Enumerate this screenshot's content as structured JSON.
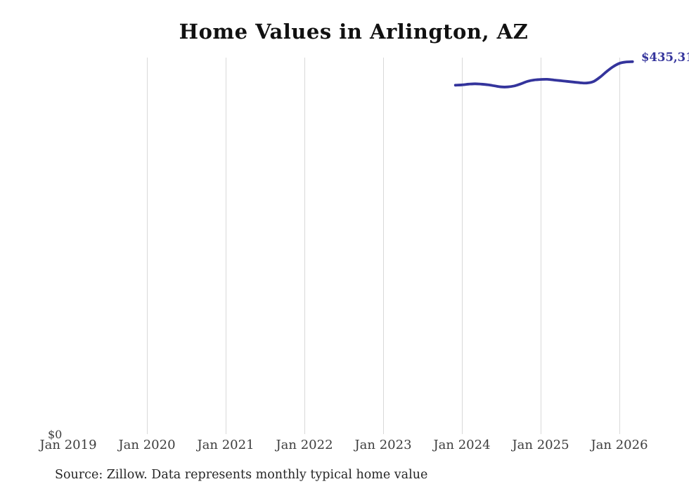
{
  "title": "Home Values in Arlington, AZ",
  "source_note": "Source: Zillow. Data represents monthly typical home value",
  "y_axis": {
    "zero_label": "$0"
  },
  "end_value_label": "$435,31",
  "colors": {
    "line": "#34349c",
    "gridline": "#d9d9d9",
    "title_text": "#111111",
    "tick_text": "#3d3d3d",
    "source_text": "#262626",
    "background": "#ffffff"
  },
  "chart_data": {
    "type": "line",
    "title": "Home Values in Arlington, AZ",
    "xlabel": "",
    "ylabel": "",
    "legend": "none",
    "grid": "vertical gridlines only, none at first tick",
    "y_axis_min": 0,
    "x_ticks": [
      {
        "label": "Jan 2019",
        "gridline": false
      },
      {
        "label": "Jan 2020",
        "gridline": true
      },
      {
        "label": "Jan 2021",
        "gridline": true
      },
      {
        "label": "Jan 2022",
        "gridline": true
      },
      {
        "label": "Jan 2023",
        "gridline": true
      },
      {
        "label": "Jan 2024",
        "gridline": true
      },
      {
        "label": "Jan 2025",
        "gridline": true
      },
      {
        "label": "Jan 2026",
        "gridline": true
      }
    ],
    "series": [
      {
        "name": "Monthly typical home value",
        "end_label": "$435,31",
        "points": [
          {
            "month": "Dec 2023",
            "value": 407800
          },
          {
            "month": "Jan 2024",
            "value": 408200
          },
          {
            "month": "Feb 2024",
            "value": 409000
          },
          {
            "month": "Mar 2024",
            "value": 409400
          },
          {
            "month": "Apr 2024",
            "value": 409000
          },
          {
            "month": "May 2024",
            "value": 408200
          },
          {
            "month": "Jun 2024",
            "value": 407000
          },
          {
            "month": "Jul 2024",
            "value": 405800
          },
          {
            "month": "Aug 2024",
            "value": 405800
          },
          {
            "month": "Sep 2024",
            "value": 407000
          },
          {
            "month": "Oct 2024",
            "value": 409400
          },
          {
            "month": "Nov 2024",
            "value": 412300
          },
          {
            "month": "Dec 2024",
            "value": 413900
          },
          {
            "month": "Jan 2025",
            "value": 414500
          },
          {
            "month": "Feb 2025",
            "value": 414700
          },
          {
            "month": "Mar 2025",
            "value": 413900
          },
          {
            "month": "Apr 2025",
            "value": 413100
          },
          {
            "month": "May 2025",
            "value": 412300
          },
          {
            "month": "Jun 2025",
            "value": 411500
          },
          {
            "month": "Jul 2025",
            "value": 410700
          },
          {
            "month": "Aug 2025",
            "value": 410300
          },
          {
            "month": "Sep 2025",
            "value": 411900
          },
          {
            "month": "Oct 2025",
            "value": 416900
          },
          {
            "month": "Nov 2025",
            "value": 423400
          },
          {
            "month": "Dec 2025",
            "value": 429200
          },
          {
            "month": "Jan 2026",
            "value": 433300
          },
          {
            "month": "Feb 2026",
            "value": 434900
          },
          {
            "month": "Mar 2026",
            "value": 435300
          }
        ]
      }
    ]
  }
}
